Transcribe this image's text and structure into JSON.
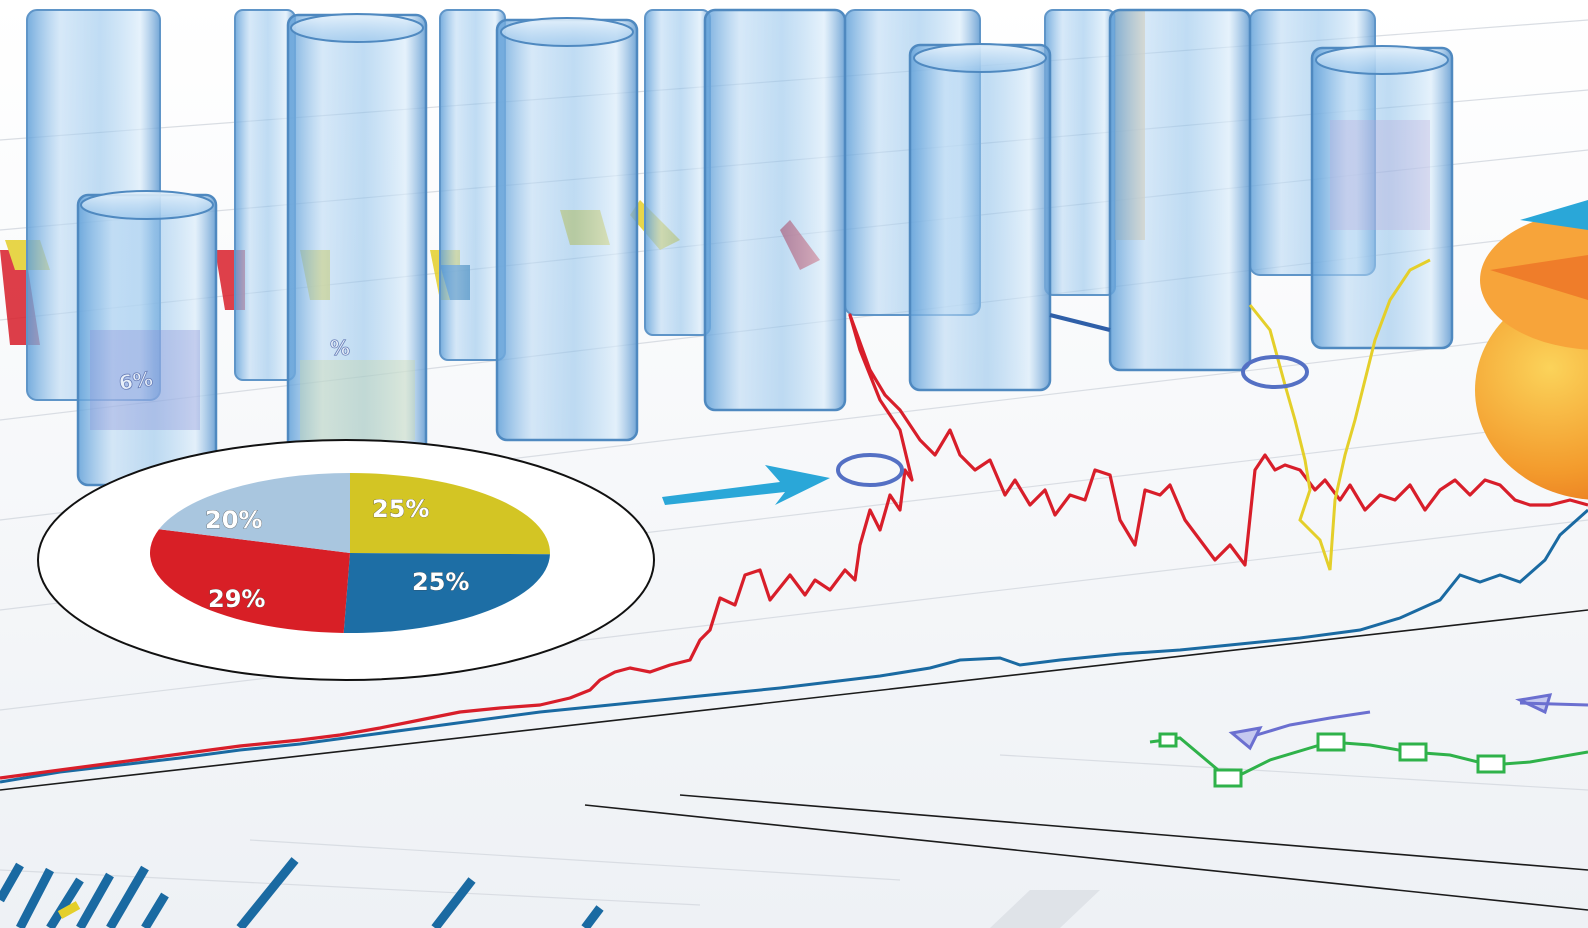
{
  "scene": {
    "background": "#f4f6f9",
    "paper_color": "#fbfcfd",
    "glass_color": "#7fb5e6",
    "accent_red": "#d81e2a",
    "accent_blue": "#1a6aa2",
    "accent_yellow": "#e4cf2a",
    "accent_green": "#2fb24a",
    "accent_cyan": "#2aa7d8"
  },
  "pie": {
    "slices": [
      {
        "label": "20%",
        "value": 20,
        "color": "#a9c6df"
      },
      {
        "label": "25%",
        "value": 25,
        "color": "#d3c524"
      },
      {
        "label": "25%",
        "value": 25,
        "color": "#1d6ea5"
      },
      {
        "label": "29%",
        "value": 29,
        "color": "#d81f26"
      }
    ]
  },
  "glass_labels": {
    "left_column": "6%",
    "mid_column": "%"
  }
}
